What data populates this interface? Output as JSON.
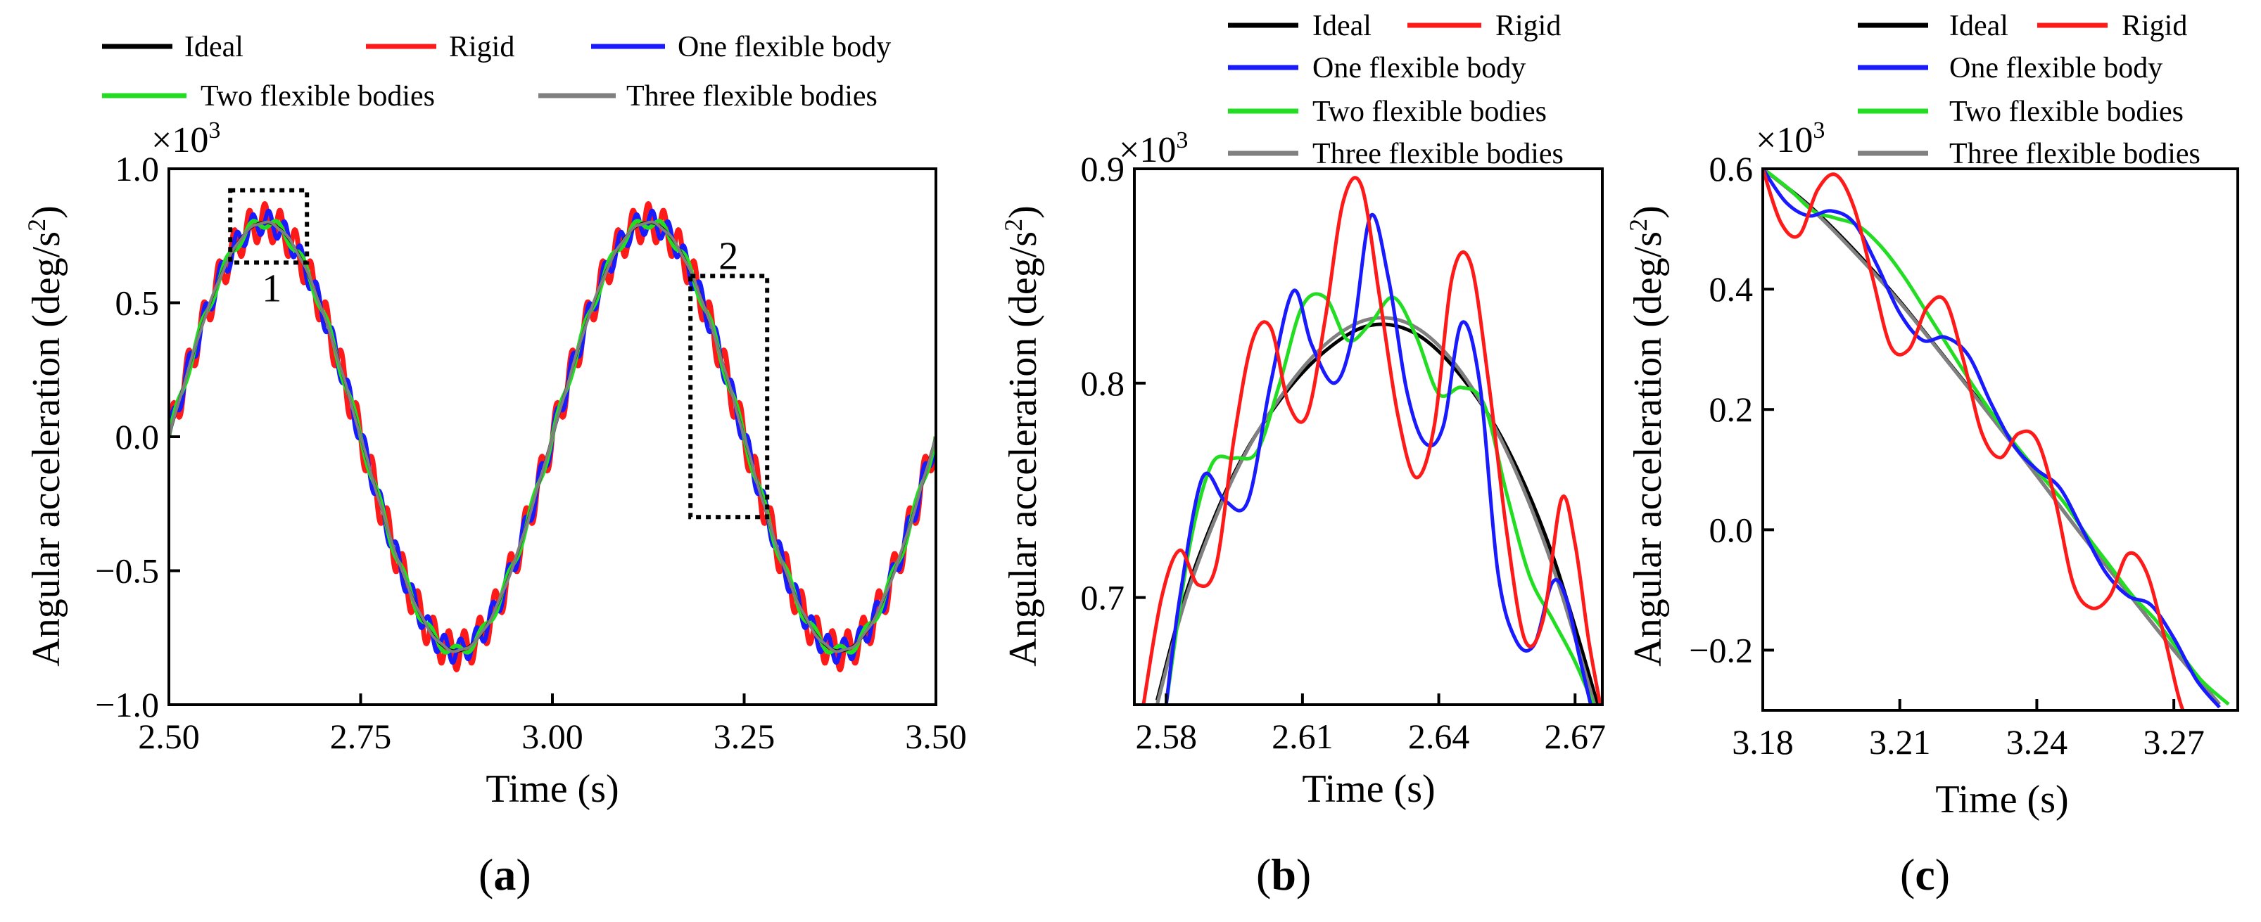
{
  "figure_labels": {
    "a_open": "(",
    "a": "a",
    "a_close": ")",
    "b_open": "(",
    "b": "b",
    "b_close": ")",
    "c_open": "(",
    "c": "c",
    "c_close": ")"
  },
  "colors": {
    "Ideal": "#000000",
    "Rigid": "#ff1a1a",
    "One flexible body": "#1a1aff",
    "Two flexible bodies": "#22dd22",
    "Three flexible bodies": "#808080"
  },
  "chart_data": [
    {
      "id": "a",
      "type": "line",
      "xlabel": "Time (s)",
      "ylabel": "Angular acceleration (deg/s²)",
      "ylabel_base": "Angular acceleration (deg/s",
      "ylabel_sup": "2",
      "ylabel_close": ")",
      "multiplier": "×10",
      "multiplier_exp": "3",
      "xlim": [
        2.5,
        3.5
      ],
      "ylim": [
        -1.0,
        1.0
      ],
      "x_ticks": [
        "2.50",
        "2.75",
        "3.00",
        "3.25",
        "3.50"
      ],
      "x_tick_values": [
        2.5,
        2.75,
        3.0,
        3.25,
        3.5
      ],
      "y_ticks": [
        "1.0",
        "0.5",
        "0.0",
        "−0.5",
        "−1.0"
      ],
      "y_tick_values": [
        1.0,
        0.5,
        0.0,
        -0.5,
        -1.0
      ],
      "legend": [
        "Ideal",
        "Rigid",
        "One flexible body",
        "Two flexible bodies",
        "Three flexible bodies"
      ],
      "model": {
        "amplitude": 0.8,
        "period": 0.5,
        "phase_start": 2.5,
        "t_range": [
          2.5,
          3.5
        ]
      },
      "ripple": {
        "Ideal": 0,
        "Rigid": 0.07,
        "One flexible body": 0.045,
        "Two flexible bodies": 0.02,
        "Three flexible bodies": 0.003,
        "frequency_hz": {
          "Rigid": 50,
          "One flexible body": 48,
          "Two flexible bodies": 30,
          "Three flexible bodies": 40
        }
      },
      "annotations": [
        {
          "label": "1",
          "x_range": [
            2.58,
            2.68
          ],
          "y_range": [
            0.65,
            0.92
          ]
        },
        {
          "label": "2",
          "x_range": [
            3.18,
            3.28
          ],
          "y_range": [
            -0.3,
            0.6
          ]
        }
      ]
    },
    {
      "id": "b",
      "type": "line",
      "xlabel": "Time (s)",
      "ylabel": "Angular acceleration (deg/s²)",
      "ylabel_base": "Angular acceleration (deg/s",
      "ylabel_sup": "2",
      "ylabel_close": ")",
      "multiplier": "×10",
      "multiplier_exp": "3",
      "xlim": [
        2.573,
        2.676
      ],
      "ylim": [
        0.65,
        0.9
      ],
      "x_ticks": [
        "2.58",
        "2.61",
        "2.64",
        "2.67"
      ],
      "x_tick_values": [
        2.58,
        2.61,
        2.64,
        2.67
      ],
      "y_ticks": [
        "0.9",
        "0.8",
        "0.7"
      ],
      "y_tick_values": [
        0.9,
        0.8,
        0.7
      ],
      "legend": [
        "Ideal",
        "Rigid",
        "One flexible body",
        "Two flexible bodies",
        "Three flexible bodies"
      ],
      "series": [
        {
          "name": "Ideal",
          "x": [
            2.578,
            2.585,
            2.595,
            2.605,
            2.615,
            2.625,
            2.635,
            2.645,
            2.655,
            2.665,
            2.675
          ],
          "values": [
            0.652,
            0.706,
            0.758,
            0.792,
            0.815,
            0.827,
            0.823,
            0.803,
            0.77,
            0.72,
            0.65
          ]
        },
        {
          "name": "Three flexible bodies",
          "x": [
            2.578,
            2.585,
            2.595,
            2.605,
            2.615,
            2.625,
            2.635,
            2.645,
            2.655,
            2.665,
            2.675
          ],
          "values": [
            0.65,
            0.704,
            0.757,
            0.793,
            0.818,
            0.83,
            0.826,
            0.805,
            0.768,
            0.715,
            0.645
          ]
        },
        {
          "name": "Two flexible bodies",
          "x": [
            2.58,
            2.585,
            2.59,
            2.595,
            2.6,
            2.605,
            2.61,
            2.615,
            2.62,
            2.625,
            2.63,
            2.635,
            2.64,
            2.645,
            2.65,
            2.655,
            2.66,
            2.665,
            2.67,
            2.675
          ],
          "values": [
            0.65,
            0.722,
            0.762,
            0.765,
            0.768,
            0.8,
            0.836,
            0.84,
            0.82,
            0.828,
            0.84,
            0.822,
            0.795,
            0.798,
            0.79,
            0.748,
            0.71,
            0.69,
            0.67,
            0.645
          ]
        },
        {
          "name": "One flexible body",
          "x": [
            2.58,
            2.583,
            2.588,
            2.593,
            2.598,
            2.603,
            2.608,
            2.612,
            2.617,
            2.621,
            2.625,
            2.629,
            2.633,
            2.637,
            2.641,
            2.645,
            2.649,
            2.653,
            2.657,
            2.661,
            2.665,
            2.668,
            2.671,
            2.674
          ],
          "values": [
            0.65,
            0.7,
            0.756,
            0.745,
            0.745,
            0.8,
            0.843,
            0.818,
            0.8,
            0.822,
            0.878,
            0.848,
            0.796,
            0.772,
            0.78,
            0.828,
            0.8,
            0.712,
            0.68,
            0.678,
            0.707,
            0.7,
            0.672,
            0.645
          ]
        },
        {
          "name": "Rigid",
          "x": [
            2.575,
            2.579,
            2.583,
            2.587,
            2.591,
            2.595,
            2.599,
            2.603,
            2.607,
            2.611,
            2.615,
            2.619,
            2.623,
            2.627,
            2.631,
            2.635,
            2.639,
            2.643,
            2.647,
            2.651,
            2.655,
            2.659,
            2.663,
            2.667,
            2.67,
            2.673,
            2.676
          ],
          "values": [
            0.65,
            0.7,
            0.722,
            0.706,
            0.715,
            0.775,
            0.82,
            0.826,
            0.79,
            0.785,
            0.83,
            0.885,
            0.892,
            0.84,
            0.785,
            0.756,
            0.78,
            0.85,
            0.856,
            0.8,
            0.73,
            0.68,
            0.69,
            0.746,
            0.725,
            0.68,
            0.645
          ]
        }
      ]
    },
    {
      "id": "c",
      "type": "line",
      "xlabel": "Time (s)",
      "ylabel": "Angular acceleration (deg/s²)",
      "ylabel_base": "Angular acceleration (deg/s",
      "ylabel_sup": "2",
      "ylabel_close": ")",
      "multiplier": "×10",
      "multiplier_exp": "3",
      "xlim": [
        3.18,
        3.284
      ],
      "ylim": [
        -0.3,
        0.6
      ],
      "x_ticks": [
        "3.18",
        "3.21",
        "3.24",
        "3.27"
      ],
      "x_tick_values": [
        3.18,
        3.21,
        3.24,
        3.27
      ],
      "y_ticks": [
        "0.6",
        "0.4",
        "0.2",
        "0.0",
        "−0.2"
      ],
      "y_tick_values": [
        0.6,
        0.4,
        0.2,
        0.0,
        -0.2
      ],
      "legend": [
        "Ideal",
        "Rigid",
        "One flexible body",
        "Two flexible bodies",
        "Three flexible bodies"
      ],
      "series": [
        {
          "name": "Ideal",
          "x": [
            3.18,
            3.19,
            3.2,
            3.21,
            3.22,
            3.23,
            3.24,
            3.25,
            3.26,
            3.27,
            3.28
          ],
          "values": [
            0.6,
            0.54,
            0.465,
            0.38,
            0.285,
            0.19,
            0.09,
            -0.01,
            -0.105,
            -0.2,
            -0.29
          ]
        },
        {
          "name": "Three flexible bodies",
          "x": [
            3.18,
            3.19,
            3.2,
            3.21,
            3.22,
            3.23,
            3.24,
            3.25,
            3.26,
            3.27,
            3.28
          ],
          "values": [
            0.6,
            0.538,
            0.462,
            0.378,
            0.284,
            0.188,
            0.09,
            -0.01,
            -0.105,
            -0.2,
            -0.29
          ]
        },
        {
          "name": "Two flexible bodies",
          "x": [
            3.181,
            3.186,
            3.191,
            3.196,
            3.201,
            3.206,
            3.211,
            3.216,
            3.221,
            3.226,
            3.231,
            3.236,
            3.241,
            3.246,
            3.251,
            3.256,
            3.261,
            3.266,
            3.271,
            3.276,
            3.282
          ],
          "values": [
            0.595,
            0.565,
            0.53,
            0.518,
            0.505,
            0.47,
            0.42,
            0.36,
            0.3,
            0.24,
            0.185,
            0.135,
            0.09,
            0.045,
            -0.01,
            -0.06,
            -0.11,
            -0.15,
            -0.2,
            -0.25,
            -0.29
          ]
        },
        {
          "name": "One flexible body",
          "x": [
            3.18,
            3.185,
            3.19,
            3.195,
            3.2,
            3.205,
            3.21,
            3.215,
            3.22,
            3.225,
            3.23,
            3.235,
            3.24,
            3.245,
            3.25,
            3.255,
            3.26,
            3.265,
            3.27,
            3.275,
            3.28
          ],
          "values": [
            0.6,
            0.545,
            0.522,
            0.53,
            0.51,
            0.44,
            0.36,
            0.315,
            0.32,
            0.29,
            0.21,
            0.14,
            0.1,
            0.07,
            0.0,
            -0.07,
            -0.11,
            -0.125,
            -0.18,
            -0.25,
            -0.295
          ]
        },
        {
          "name": "Rigid",
          "x": [
            3.18,
            3.184,
            3.188,
            3.192,
            3.196,
            3.2,
            3.204,
            3.208,
            3.212,
            3.216,
            3.22,
            3.224,
            3.228,
            3.232,
            3.236,
            3.24,
            3.244,
            3.248,
            3.252,
            3.256,
            3.26,
            3.264,
            3.268,
            3.272,
            3.276,
            3.28
          ],
          "values": [
            0.6,
            0.51,
            0.49,
            0.565,
            0.59,
            0.535,
            0.42,
            0.305,
            0.3,
            0.37,
            0.38,
            0.28,
            0.16,
            0.12,
            0.16,
            0.15,
            0.05,
            -0.09,
            -0.13,
            -0.11,
            -0.04,
            -0.07,
            -0.18,
            -0.3,
            -0.33,
            -0.3
          ]
        }
      ]
    }
  ]
}
